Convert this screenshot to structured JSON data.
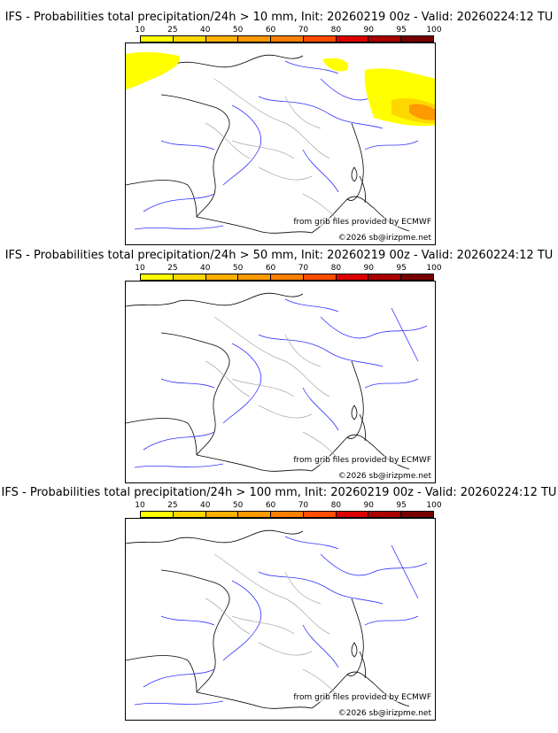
{
  "colorbar": {
    "ticks": [
      "10",
      "25",
      "40",
      "50",
      "60",
      "70",
      "80",
      "90",
      "95",
      "100"
    ],
    "colors": [
      "#ffff00",
      "#ffd700",
      "#ffb000",
      "#ff9900",
      "#ff7f00",
      "#ff4d00",
      "#dd0000",
      "#aa0000",
      "#770000"
    ]
  },
  "panels": [
    {
      "title": "IFS - Probabilities total precipitation/24h > 10 mm, Init: 20260219 00z - Valid: 20260224:12 TU",
      "credit_source": "from grib files provided by ECMWF",
      "credit_copyright": "©2026 sb@irizpme.net",
      "has_precip": true
    },
    {
      "title": "IFS - Probabilities total precipitation/24h > 50 mm, Init: 20260219 00z - Valid: 20260224:12 TU",
      "credit_source": "from grib files provided by ECMWF",
      "credit_copyright": "©2026 sb@irizpme.net",
      "has_precip": false
    },
    {
      "title": "IFS - Probabilities total precipitation/24h > 100 mm, Init: 20260219 00z - Valid: 20260224:12 TU",
      "credit_source": "from grib files provided by ECMWF",
      "credit_copyright": "©2026 sb@irizpme.net",
      "has_precip": false
    }
  ]
}
